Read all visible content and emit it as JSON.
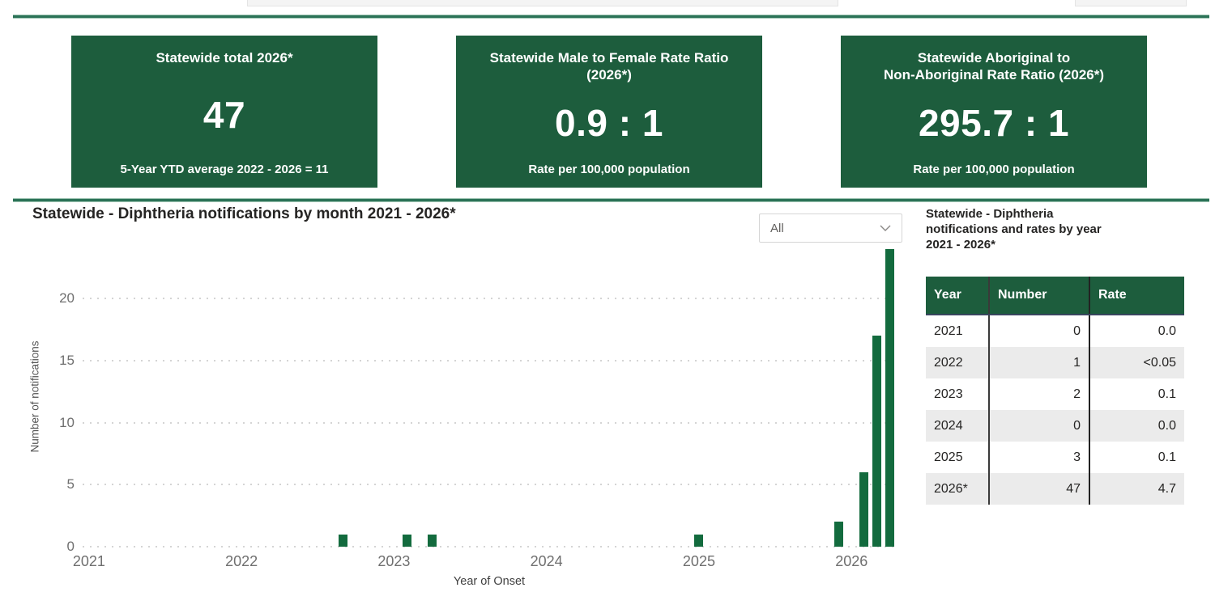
{
  "cards": [
    {
      "title1": "Statewide total 2026*",
      "title2": "",
      "value": "47",
      "footer": "5-Year YTD average 2022 - 2026 = 11"
    },
    {
      "title1": "Statewide Male to Female Rate Ratio",
      "title2": "(2026*)",
      "value": "0.9 : 1",
      "footer": "Rate per 100,000 population"
    },
    {
      "title1": "Statewide Aboriginal to",
      "title2": "Non-Aboriginal Rate Ratio (2026*)",
      "value": "295.7 : 1",
      "footer": "Rate per 100,000 population"
    }
  ],
  "chart": {
    "title": "Statewide - Diphtheria notifications by month 2021 - 2026*",
    "filter_value": "All"
  },
  "chart_data": {
    "type": "bar",
    "title": "Statewide - Diphtheria notifications by month 2021 - 2026*",
    "xlabel": "Year of Onset",
    "ylabel": "Number of notifications",
    "x_unit": "month",
    "x_range": [
      "2021-01",
      "2026-04"
    ],
    "year_ticks": [
      2021,
      2022,
      2023,
      2024,
      2025,
      2026
    ],
    "y_ticks": [
      0,
      5,
      10,
      15,
      20
    ],
    "ylim": [
      0,
      24
    ],
    "grid": "dotted-horizontal",
    "legend": "none",
    "bar_color": "#136b3e",
    "points": [
      {
        "month": "2022-09",
        "value": 1
      },
      {
        "month": "2023-02",
        "value": 1
      },
      {
        "month": "2023-04",
        "value": 1
      },
      {
        "month": "2025-01",
        "value": 1
      },
      {
        "month": "2025-12",
        "value": 2
      },
      {
        "month": "2026-02",
        "value": 6
      },
      {
        "month": "2026-03",
        "value": 17
      },
      {
        "month": "2026-04",
        "value": 24
      }
    ]
  },
  "table": {
    "title_lines": [
      "Statewide - Diphtheria",
      "notifications and rates by year",
      "2021 - 2026*"
    ],
    "columns": [
      "Year",
      "Number",
      "Rate"
    ],
    "rows": [
      [
        "2021",
        "0",
        "0.0"
      ],
      [
        "2022",
        "1",
        "<0.05"
      ],
      [
        "2023",
        "2",
        "0.1"
      ],
      [
        "2024",
        "0",
        "0.0"
      ],
      [
        "2025",
        "3",
        "0.1"
      ],
      [
        "2026*",
        "47",
        "4.7"
      ]
    ]
  },
  "colors": {
    "card_green": "#1d5d3d",
    "bar_green": "#136b3e",
    "divider_green": "#2b7257",
    "row_stripe": "#ebebeb"
  }
}
